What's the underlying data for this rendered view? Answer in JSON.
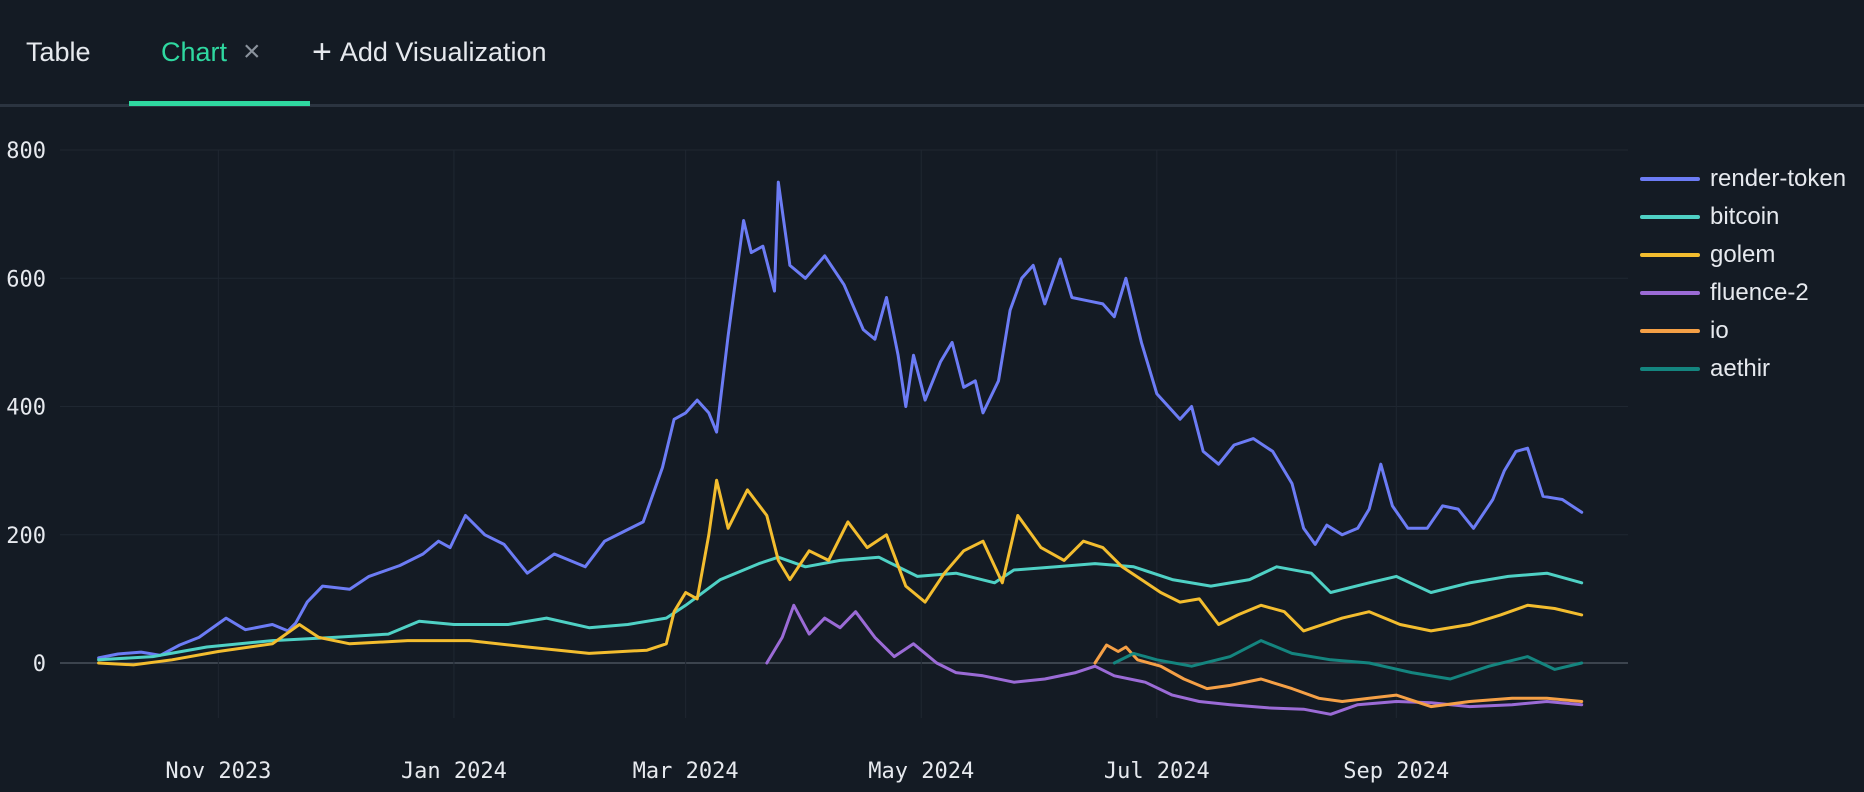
{
  "tabs": {
    "table_label": "Table",
    "chart_label": "Chart",
    "close_icon": "×",
    "add_icon": "+",
    "add_label": "Add Visualization"
  },
  "colors": {
    "accent": "#2fd8a0",
    "background": "#141b24"
  },
  "chart_data": {
    "type": "line",
    "title": "",
    "xlabel": "",
    "ylabel": "",
    "ylim": [
      -160,
      800
    ],
    "yticks": [
      0,
      200,
      400,
      600,
      800
    ],
    "xlim": [
      "2023-09-21",
      "2024-10-31"
    ],
    "xticks": [
      {
        "date": "2023-11-01",
        "label": "Nov 2023"
      },
      {
        "date": "2024-01-01",
        "label": "Jan 2024"
      },
      {
        "date": "2024-03-01",
        "label": "Mar 2024"
      },
      {
        "date": "2024-05-01",
        "label": "May 2024"
      },
      {
        "date": "2024-07-01",
        "label": "Jul 2024"
      },
      {
        "date": "2024-09-01",
        "label": "Sep 2024"
      }
    ],
    "legend_position": "top-right",
    "series": [
      {
        "name": "render-token",
        "color": "#6c7cf5",
        "points": [
          [
            "2023-10-01",
            8
          ],
          [
            "2023-10-06",
            14
          ],
          [
            "2023-10-12",
            17
          ],
          [
            "2023-10-17",
            12
          ],
          [
            "2023-10-22",
            28
          ],
          [
            "2023-10-27",
            40
          ],
          [
            "2023-11-03",
            70
          ],
          [
            "2023-11-08",
            52
          ],
          [
            "2023-11-15",
            60
          ],
          [
            "2023-11-19",
            50
          ],
          [
            "2023-11-21",
            62
          ],
          [
            "2023-11-24",
            95
          ],
          [
            "2023-11-28",
            120
          ],
          [
            "2023-12-05",
            115
          ],
          [
            "2023-12-10",
            135
          ],
          [
            "2023-12-18",
            152
          ],
          [
            "2023-12-24",
            170
          ],
          [
            "2023-12-28",
            190
          ],
          [
            "2023-12-31",
            180
          ],
          [
            "2024-01-04",
            230
          ],
          [
            "2024-01-09",
            200
          ],
          [
            "2024-01-14",
            185
          ],
          [
            "2024-01-20",
            140
          ],
          [
            "2024-01-27",
            170
          ],
          [
            "2024-02-04",
            150
          ],
          [
            "2024-02-09",
            190
          ],
          [
            "2024-02-14",
            205
          ],
          [
            "2024-02-19",
            220
          ],
          [
            "2024-02-24",
            305
          ],
          [
            "2024-02-27",
            380
          ],
          [
            "2024-03-01",
            390
          ],
          [
            "2024-03-04",
            410
          ],
          [
            "2024-03-07",
            390
          ],
          [
            "2024-03-09",
            360
          ],
          [
            "2024-03-12",
            510
          ],
          [
            "2024-03-16",
            690
          ],
          [
            "2024-03-18",
            640
          ],
          [
            "2024-03-21",
            650
          ],
          [
            "2024-03-24",
            580
          ],
          [
            "2024-03-25",
            750
          ],
          [
            "2024-03-28",
            620
          ],
          [
            "2024-04-01",
            600
          ],
          [
            "2024-04-06",
            635
          ],
          [
            "2024-04-11",
            590
          ],
          [
            "2024-04-16",
            520
          ],
          [
            "2024-04-19",
            505
          ],
          [
            "2024-04-22",
            570
          ],
          [
            "2024-04-25",
            480
          ],
          [
            "2024-04-27",
            400
          ],
          [
            "2024-04-29",
            480
          ],
          [
            "2024-05-02",
            410
          ],
          [
            "2024-05-06",
            470
          ],
          [
            "2024-05-09",
            500
          ],
          [
            "2024-05-12",
            430
          ],
          [
            "2024-05-15",
            440
          ],
          [
            "2024-05-17",
            390
          ],
          [
            "2024-05-21",
            440
          ],
          [
            "2024-05-24",
            550
          ],
          [
            "2024-05-27",
            600
          ],
          [
            "2024-05-30",
            620
          ],
          [
            "2024-06-02",
            560
          ],
          [
            "2024-06-06",
            630
          ],
          [
            "2024-06-09",
            570
          ],
          [
            "2024-06-13",
            565
          ],
          [
            "2024-06-17",
            560
          ],
          [
            "2024-06-20",
            540
          ],
          [
            "2024-06-23",
            600
          ],
          [
            "2024-06-27",
            500
          ],
          [
            "2024-07-01",
            420
          ],
          [
            "2024-07-04",
            400
          ],
          [
            "2024-07-07",
            380
          ],
          [
            "2024-07-10",
            400
          ],
          [
            "2024-07-13",
            330
          ],
          [
            "2024-07-17",
            310
          ],
          [
            "2024-07-21",
            340
          ],
          [
            "2024-07-26",
            350
          ],
          [
            "2024-07-31",
            330
          ],
          [
            "2024-08-05",
            280
          ],
          [
            "2024-08-08",
            210
          ],
          [
            "2024-08-11",
            185
          ],
          [
            "2024-08-14",
            215
          ],
          [
            "2024-08-18",
            200
          ],
          [
            "2024-08-22",
            210
          ],
          [
            "2024-08-25",
            240
          ],
          [
            "2024-08-28",
            310
          ],
          [
            "2024-08-31",
            245
          ],
          [
            "2024-09-04",
            210
          ],
          [
            "2024-09-09",
            210
          ],
          [
            "2024-09-13",
            245
          ],
          [
            "2024-09-17",
            240
          ],
          [
            "2024-09-21",
            210
          ],
          [
            "2024-09-26",
            255
          ],
          [
            "2024-09-29",
            300
          ],
          [
            "2024-10-02",
            330
          ],
          [
            "2024-10-05",
            335
          ],
          [
            "2024-10-09",
            260
          ],
          [
            "2024-10-14",
            255
          ],
          [
            "2024-10-19",
            235
          ]
        ]
      },
      {
        "name": "bitcoin",
        "color": "#4fd1c5",
        "points": [
          [
            "2023-10-01",
            5
          ],
          [
            "2023-10-15",
            10
          ],
          [
            "2023-10-29",
            25
          ],
          [
            "2023-11-15",
            35
          ],
          [
            "2023-12-01",
            40
          ],
          [
            "2023-12-15",
            45
          ],
          [
            "2023-12-23",
            65
          ],
          [
            "2024-01-01",
            60
          ],
          [
            "2024-01-15",
            60
          ],
          [
            "2024-01-25",
            70
          ],
          [
            "2024-02-05",
            55
          ],
          [
            "2024-02-15",
            60
          ],
          [
            "2024-02-25",
            70
          ],
          [
            "2024-03-01",
            90
          ],
          [
            "2024-03-10",
            130
          ],
          [
            "2024-03-20",
            155
          ],
          [
            "2024-03-25",
            165
          ],
          [
            "2024-04-01",
            150
          ],
          [
            "2024-04-10",
            160
          ],
          [
            "2024-04-20",
            165
          ],
          [
            "2024-04-30",
            135
          ],
          [
            "2024-05-10",
            140
          ],
          [
            "2024-05-20",
            125
          ],
          [
            "2024-05-25",
            145
          ],
          [
            "2024-06-05",
            150
          ],
          [
            "2024-06-15",
            155
          ],
          [
            "2024-06-25",
            150
          ],
          [
            "2024-07-05",
            130
          ],
          [
            "2024-07-15",
            120
          ],
          [
            "2024-07-25",
            130
          ],
          [
            "2024-08-01",
            150
          ],
          [
            "2024-08-10",
            140
          ],
          [
            "2024-08-15",
            110
          ],
          [
            "2024-08-25",
            125
          ],
          [
            "2024-09-01",
            135
          ],
          [
            "2024-09-10",
            110
          ],
          [
            "2024-09-20",
            125
          ],
          [
            "2024-09-30",
            135
          ],
          [
            "2024-10-10",
            140
          ],
          [
            "2024-10-19",
            125
          ]
        ]
      },
      {
        "name": "golem",
        "color": "#f3bd2f",
        "points": [
          [
            "2023-10-01",
            0
          ],
          [
            "2023-10-10",
            -3
          ],
          [
            "2023-10-20",
            5
          ],
          [
            "2023-11-01",
            18
          ],
          [
            "2023-11-15",
            30
          ],
          [
            "2023-11-22",
            60
          ],
          [
            "2023-11-27",
            40
          ],
          [
            "2023-12-05",
            30
          ],
          [
            "2023-12-20",
            35
          ],
          [
            "2024-01-05",
            35
          ],
          [
            "2024-01-20",
            25
          ],
          [
            "2024-02-05",
            15
          ],
          [
            "2024-02-20",
            20
          ],
          [
            "2024-02-25",
            30
          ],
          [
            "2024-02-27",
            80
          ],
          [
            "2024-03-01",
            110
          ],
          [
            "2024-03-04",
            100
          ],
          [
            "2024-03-07",
            200
          ],
          [
            "2024-03-09",
            285
          ],
          [
            "2024-03-12",
            210
          ],
          [
            "2024-03-17",
            270
          ],
          [
            "2024-03-22",
            230
          ],
          [
            "2024-03-25",
            160
          ],
          [
            "2024-03-28",
            130
          ],
          [
            "2024-04-02",
            175
          ],
          [
            "2024-04-07",
            160
          ],
          [
            "2024-04-12",
            220
          ],
          [
            "2024-04-17",
            180
          ],
          [
            "2024-04-22",
            200
          ],
          [
            "2024-04-27",
            120
          ],
          [
            "2024-05-02",
            95
          ],
          [
            "2024-05-07",
            140
          ],
          [
            "2024-05-12",
            175
          ],
          [
            "2024-05-17",
            190
          ],
          [
            "2024-05-22",
            125
          ],
          [
            "2024-05-26",
            230
          ],
          [
            "2024-06-01",
            180
          ],
          [
            "2024-06-07",
            160
          ],
          [
            "2024-06-12",
            190
          ],
          [
            "2024-06-17",
            180
          ],
          [
            "2024-06-22",
            150
          ],
          [
            "2024-06-27",
            130
          ],
          [
            "2024-07-02",
            110
          ],
          [
            "2024-07-07",
            95
          ],
          [
            "2024-07-12",
            100
          ],
          [
            "2024-07-17",
            60
          ],
          [
            "2024-07-22",
            75
          ],
          [
            "2024-07-28",
            90
          ],
          [
            "2024-08-03",
            80
          ],
          [
            "2024-08-08",
            50
          ],
          [
            "2024-08-13",
            60
          ],
          [
            "2024-08-18",
            70
          ],
          [
            "2024-08-25",
            80
          ],
          [
            "2024-09-02",
            60
          ],
          [
            "2024-09-10",
            50
          ],
          [
            "2024-09-20",
            60
          ],
          [
            "2024-09-28",
            75
          ],
          [
            "2024-10-05",
            90
          ],
          [
            "2024-10-12",
            85
          ],
          [
            "2024-10-19",
            75
          ]
        ]
      },
      {
        "name": "fluence-2",
        "color": "#9b6bd6",
        "points": [
          [
            "2024-03-22",
            0
          ],
          [
            "2024-03-26",
            40
          ],
          [
            "2024-03-29",
            90
          ],
          [
            "2024-04-02",
            45
          ],
          [
            "2024-04-06",
            70
          ],
          [
            "2024-04-10",
            55
          ],
          [
            "2024-04-14",
            80
          ],
          [
            "2024-04-19",
            40
          ],
          [
            "2024-04-24",
            10
          ],
          [
            "2024-04-29",
            30
          ],
          [
            "2024-05-05",
            0
          ],
          [
            "2024-05-10",
            -15
          ],
          [
            "2024-05-17",
            -20
          ],
          [
            "2024-05-25",
            -30
          ],
          [
            "2024-06-02",
            -25
          ],
          [
            "2024-06-10",
            -15
          ],
          [
            "2024-06-15",
            -5
          ],
          [
            "2024-06-20",
            -20
          ],
          [
            "2024-06-28",
            -30
          ],
          [
            "2024-07-05",
            -50
          ],
          [
            "2024-07-12",
            -60
          ],
          [
            "2024-07-20",
            -65
          ],
          [
            "2024-07-30",
            -70
          ],
          [
            "2024-08-08",
            -72
          ],
          [
            "2024-08-15",
            -80
          ],
          [
            "2024-08-22",
            -65
          ],
          [
            "2024-09-01",
            -60
          ],
          [
            "2024-09-10",
            -62
          ],
          [
            "2024-09-20",
            -68
          ],
          [
            "2024-10-01",
            -65
          ],
          [
            "2024-10-10",
            -60
          ],
          [
            "2024-10-19",
            -65
          ]
        ]
      },
      {
        "name": "io",
        "color": "#f5a046",
        "points": [
          [
            "2024-06-15",
            0
          ],
          [
            "2024-06-18",
            28
          ],
          [
            "2024-06-21",
            18
          ],
          [
            "2024-06-23",
            25
          ],
          [
            "2024-06-26",
            5
          ],
          [
            "2024-07-02",
            -5
          ],
          [
            "2024-07-08",
            -25
          ],
          [
            "2024-07-14",
            -40
          ],
          [
            "2024-07-20",
            -35
          ],
          [
            "2024-07-28",
            -25
          ],
          [
            "2024-08-05",
            -40
          ],
          [
            "2024-08-12",
            -55
          ],
          [
            "2024-08-18",
            -60
          ],
          [
            "2024-08-25",
            -55
          ],
          [
            "2024-09-01",
            -50
          ],
          [
            "2024-09-10",
            -68
          ],
          [
            "2024-09-20",
            -60
          ],
          [
            "2024-10-01",
            -55
          ],
          [
            "2024-10-10",
            -55
          ],
          [
            "2024-10-19",
            -60
          ]
        ]
      },
      {
        "name": "aethir",
        "color": "#14857f",
        "points": [
          [
            "2024-06-20",
            0
          ],
          [
            "2024-06-25",
            15
          ],
          [
            "2024-07-01",
            5
          ],
          [
            "2024-07-10",
            -5
          ],
          [
            "2024-07-20",
            10
          ],
          [
            "2024-07-28",
            35
          ],
          [
            "2024-08-05",
            15
          ],
          [
            "2024-08-15",
            5
          ],
          [
            "2024-08-25",
            0
          ],
          [
            "2024-09-05",
            -15
          ],
          [
            "2024-09-15",
            -25
          ],
          [
            "2024-09-25",
            -5
          ],
          [
            "2024-10-05",
            10
          ],
          [
            "2024-10-12",
            -10
          ],
          [
            "2024-10-19",
            0
          ]
        ]
      }
    ]
  }
}
